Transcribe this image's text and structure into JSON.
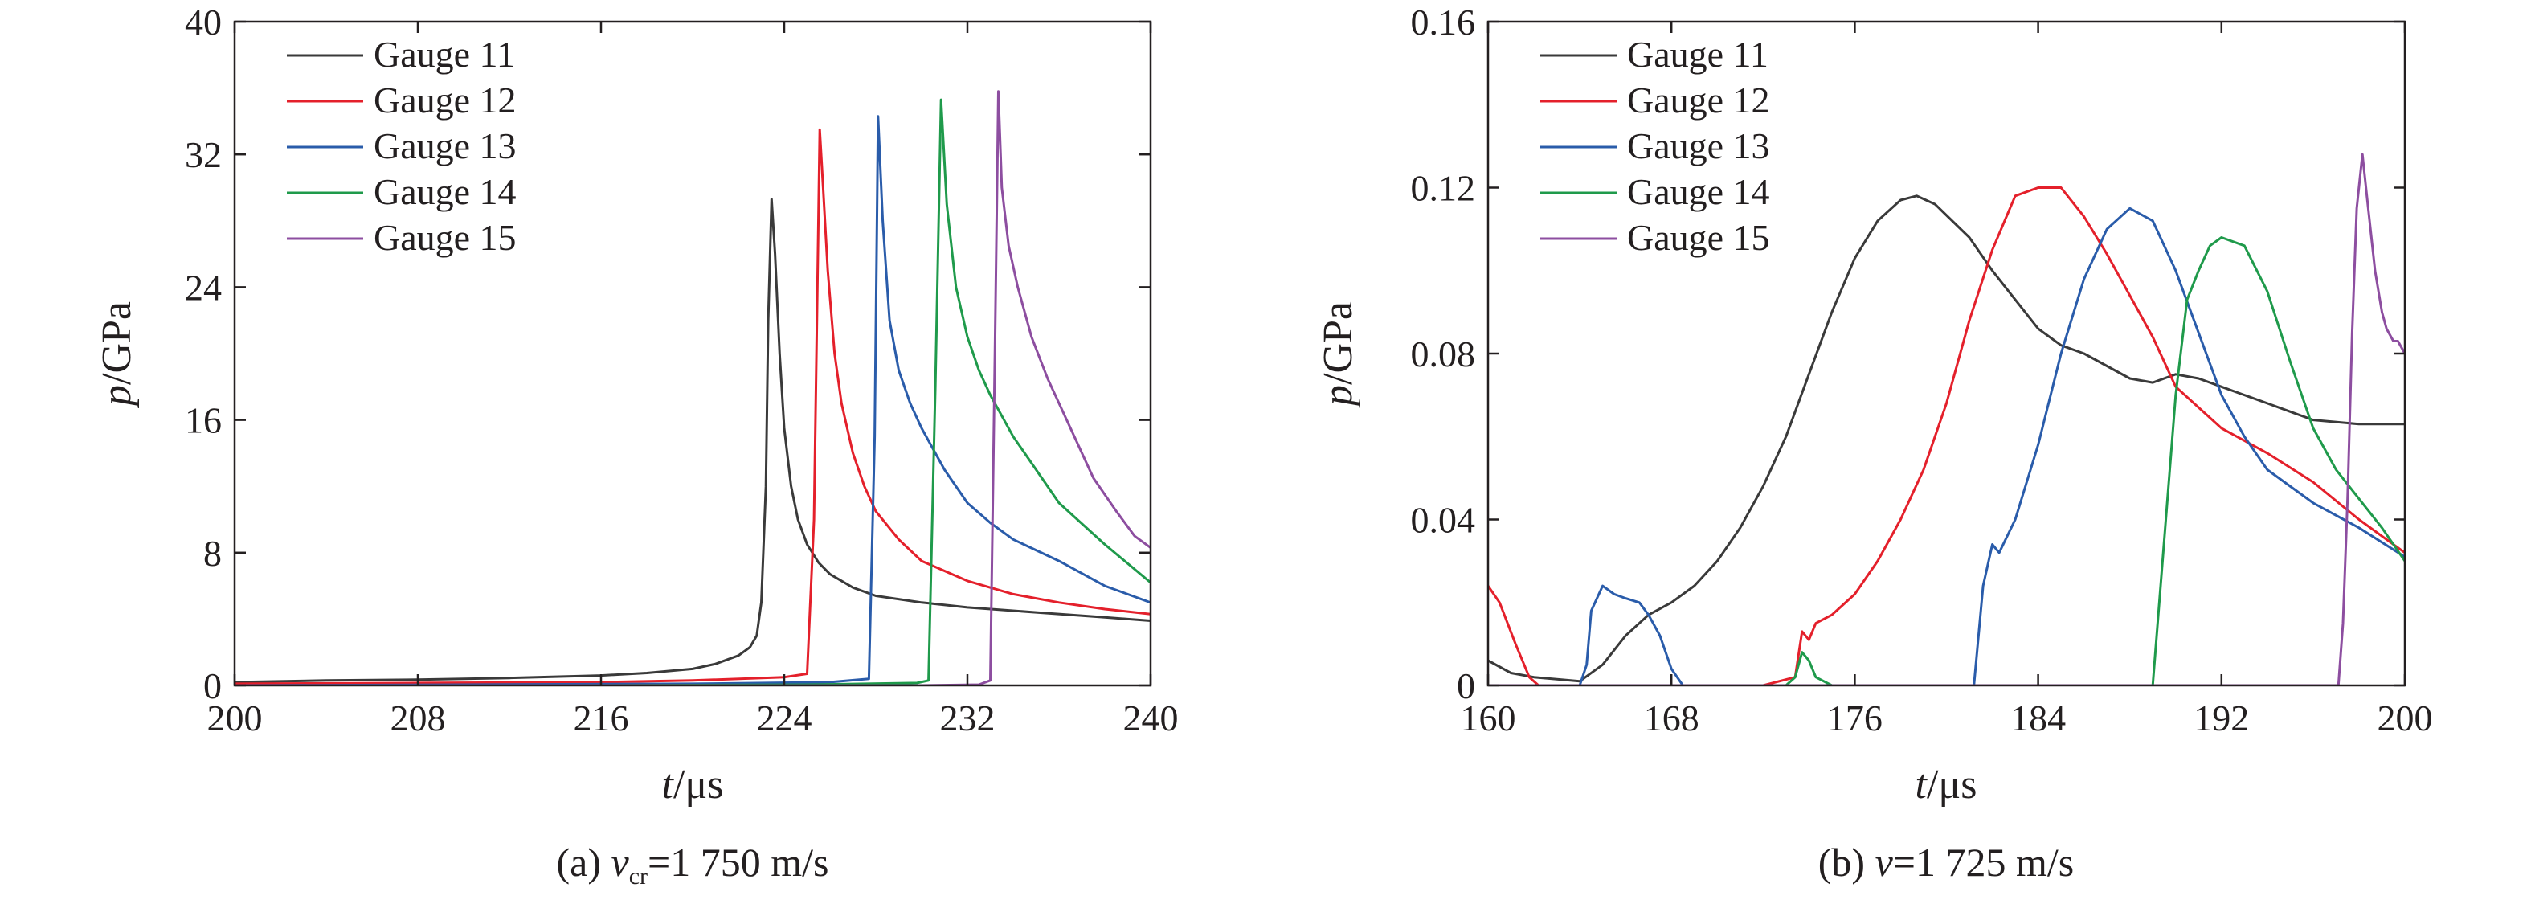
{
  "chart_data": [
    {
      "type": "line",
      "title": "",
      "caption": {
        "prefix": "(a) ",
        "var": "v",
        "sub": "cr",
        "rest": "=1 750 m/s"
      },
      "xlabel": {
        "var": "t",
        "unit": "/μs"
      },
      "ylabel": {
        "var": "p",
        "unit": "/GPa"
      },
      "xlim": [
        200,
        240
      ],
      "ylim": [
        0,
        40
      ],
      "xticks": [
        200,
        208,
        216,
        224,
        232,
        240
      ],
      "yticks": [
        0,
        8,
        16,
        24,
        32,
        40
      ],
      "xtick_labels": [
        "200",
        "208",
        "216",
        "224",
        "232",
        "240"
      ],
      "ytick_labels": [
        "0",
        "8",
        "16",
        "24",
        "32",
        "40"
      ],
      "grid": false,
      "legend_position": "top-left",
      "series": [
        {
          "name": "Gauge 11",
          "color": "#3a3a3a",
          "x": [
            200,
            204,
            208,
            212,
            216,
            218,
            220,
            221,
            222,
            222.5,
            222.8,
            223.0,
            223.2,
            223.3,
            223.45,
            223.6,
            223.8,
            224.0,
            224.3,
            224.6,
            225,
            225.5,
            226,
            227,
            228,
            230,
            232,
            235,
            238,
            240
          ],
          "y": [
            0.2,
            0.3,
            0.35,
            0.45,
            0.6,
            0.75,
            1.0,
            1.3,
            1.8,
            2.3,
            3.0,
            5.0,
            12,
            22,
            29.3,
            26,
            20,
            15.5,
            12,
            10,
            8.5,
            7.4,
            6.7,
            5.9,
            5.4,
            5.0,
            4.7,
            4.4,
            4.1,
            3.9
          ]
        },
        {
          "name": "Gauge 12",
          "color": "#e4202b",
          "x": [
            200,
            208,
            216,
            220,
            224,
            225.0,
            225.3,
            225.55,
            225.7,
            225.9,
            226.2,
            226.5,
            227,
            227.5,
            228,
            229,
            230,
            232,
            234,
            236,
            238,
            240
          ],
          "y": [
            0.1,
            0.15,
            0.2,
            0.3,
            0.5,
            0.7,
            10,
            33.5,
            30,
            25,
            20,
            17,
            14,
            12,
            10.5,
            8.8,
            7.5,
            6.3,
            5.5,
            5.0,
            4.6,
            4.3
          ]
        },
        {
          "name": "Gauge 13",
          "color": "#2a5caa",
          "x": [
            200,
            210,
            220,
            226,
            227.7,
            227.95,
            228.1,
            228.3,
            228.6,
            229,
            229.5,
            230,
            231,
            232,
            233,
            234,
            236,
            238,
            240
          ],
          "y": [
            0,
            0.05,
            0.1,
            0.2,
            0.4,
            15,
            34.3,
            28,
            22,
            19,
            17,
            15.5,
            13,
            11,
            9.8,
            8.8,
            7.5,
            6.0,
            5.0
          ]
        },
        {
          "name": "Gauge 14",
          "color": "#1f9a4b",
          "x": [
            200,
            215,
            225,
            229.8,
            230.3,
            230.6,
            230.85,
            231.1,
            231.5,
            232,
            232.5,
            233,
            234,
            235,
            236,
            238,
            240
          ],
          "y": [
            0,
            0,
            0.05,
            0.15,
            0.3,
            18,
            35.3,
            29,
            24,
            21,
            19,
            17.5,
            15,
            13,
            11,
            8.5,
            6.2
          ]
        },
        {
          "name": "Gauge 15",
          "color": "#8d4ea0",
          "x": [
            200,
            220,
            230,
            232.5,
            233.0,
            233.2,
            233.35,
            233.5,
            233.8,
            234.2,
            234.8,
            235.5,
            236.5,
            237.5,
            238.5,
            239.3,
            240
          ],
          "y": [
            0,
            0,
            0,
            0.05,
            0.3,
            20,
            35.8,
            30,
            26.5,
            24,
            21,
            18.5,
            15.5,
            12.5,
            10.5,
            9.0,
            8.3
          ]
        }
      ]
    },
    {
      "type": "line",
      "title": "",
      "caption": {
        "prefix": "(b) ",
        "var": "v",
        "sub": "",
        "rest": "=1 725 m/s"
      },
      "xlabel": {
        "var": "t",
        "unit": "/μs"
      },
      "ylabel": {
        "var": "p",
        "unit": "/GPa"
      },
      "xlim": [
        160,
        200
      ],
      "ylim": [
        0,
        0.16
      ],
      "xticks": [
        160,
        168,
        176,
        184,
        192,
        200
      ],
      "yticks": [
        0,
        0.04,
        0.08,
        0.12,
        0.16
      ],
      "xtick_labels": [
        "160",
        "168",
        "176",
        "184",
        "192",
        "200"
      ],
      "ytick_labels": [
        "0",
        "0.04",
        "0.08",
        "0.12",
        "0.16"
      ],
      "grid": false,
      "legend_position": "top-left",
      "series": [
        {
          "name": "Gauge 11",
          "color": "#3a3a3a",
          "x": [
            160,
            161,
            162,
            163,
            164,
            165,
            166,
            167,
            168,
            169,
            170,
            171,
            172,
            173,
            174,
            175,
            176,
            177,
            178,
            178.7,
            179.5,
            181,
            182,
            183,
            184,
            185,
            186,
            187,
            188,
            189,
            190,
            191,
            192,
            193,
            194,
            195,
            196,
            198,
            200
          ],
          "y": [
            0.006,
            0.003,
            0.002,
            0.0015,
            0.001,
            0.005,
            0.012,
            0.017,
            0.02,
            0.024,
            0.03,
            0.038,
            0.048,
            0.06,
            0.075,
            0.09,
            0.103,
            0.112,
            0.117,
            0.118,
            0.116,
            0.108,
            0.1,
            0.093,
            0.086,
            0.082,
            0.08,
            0.077,
            0.074,
            0.073,
            0.075,
            0.074,
            0.072,
            0.07,
            0.068,
            0.066,
            0.064,
            0.063,
            0.063
          ]
        },
        {
          "name": "Gauge 12",
          "color": "#e4202b",
          "x": [
            160,
            160.5,
            161.2,
            161.8,
            162.2,
            163,
            172,
            173.4,
            173.7,
            174.0,
            174.3,
            175,
            176,
            177,
            178,
            179,
            180,
            181,
            182,
            183,
            184,
            185,
            186,
            187,
            188,
            189,
            190,
            192,
            194,
            196,
            198,
            200
          ],
          "y": [
            0.024,
            0.02,
            0.01,
            0.002,
            0,
            0,
            0,
            0.002,
            0.013,
            0.011,
            0.015,
            0.017,
            0.022,
            0.03,
            0.04,
            0.052,
            0.068,
            0.088,
            0.105,
            0.118,
            0.12,
            0.12,
            0.113,
            0.104,
            0.094,
            0.084,
            0.072,
            0.062,
            0.056,
            0.049,
            0.04,
            0.032
          ]
        },
        {
          "name": "Gauge 13",
          "color": "#2a5caa",
          "x": [
            160,
            164,
            164.3,
            164.5,
            165,
            165.5,
            166,
            166.6,
            167,
            167.5,
            168,
            168.5,
            170,
            180,
            181.2,
            181.6,
            182,
            182.3,
            183,
            184,
            185,
            186,
            187,
            188,
            189,
            190,
            191,
            192,
            193,
            194,
            196,
            198,
            200
          ],
          "y": [
            0,
            0,
            0.005,
            0.018,
            0.024,
            0.022,
            0.021,
            0.02,
            0.017,
            0.012,
            0.004,
            0,
            0,
            0,
            0,
            0.024,
            0.034,
            0.032,
            0.04,
            0.058,
            0.08,
            0.098,
            0.11,
            0.115,
            0.112,
            0.1,
            0.085,
            0.07,
            0.06,
            0.052,
            0.044,
            0.038,
            0.031
          ]
        },
        {
          "name": "Gauge 14",
          "color": "#1f9a4b",
          "x": [
            160,
            173,
            173.4,
            173.7,
            174.0,
            174.3,
            175,
            189,
            189.5,
            190,
            190.5,
            191,
            191.5,
            192,
            193,
            194,
            195,
            196,
            197,
            198,
            199,
            200
          ],
          "y": [
            0,
            0,
            0.002,
            0.008,
            0.006,
            0.002,
            0,
            0,
            0.035,
            0.07,
            0.093,
            0.1,
            0.106,
            0.108,
            0.106,
            0.095,
            0.078,
            0.062,
            0.052,
            0.045,
            0.038,
            0.03
          ]
        },
        {
          "name": "Gauge 15",
          "color": "#8d4ea0",
          "x": [
            160,
            190,
            197.1,
            197.3,
            197.5,
            197.7,
            197.9,
            198.15,
            198.4,
            198.7,
            199,
            199.2,
            199.5,
            199.7,
            200
          ],
          "y": [
            0,
            0,
            0,
            0.015,
            0.045,
            0.085,
            0.115,
            0.128,
            0.115,
            0.1,
            0.09,
            0.086,
            0.083,
            0.083,
            0.08
          ]
        }
      ]
    }
  ]
}
